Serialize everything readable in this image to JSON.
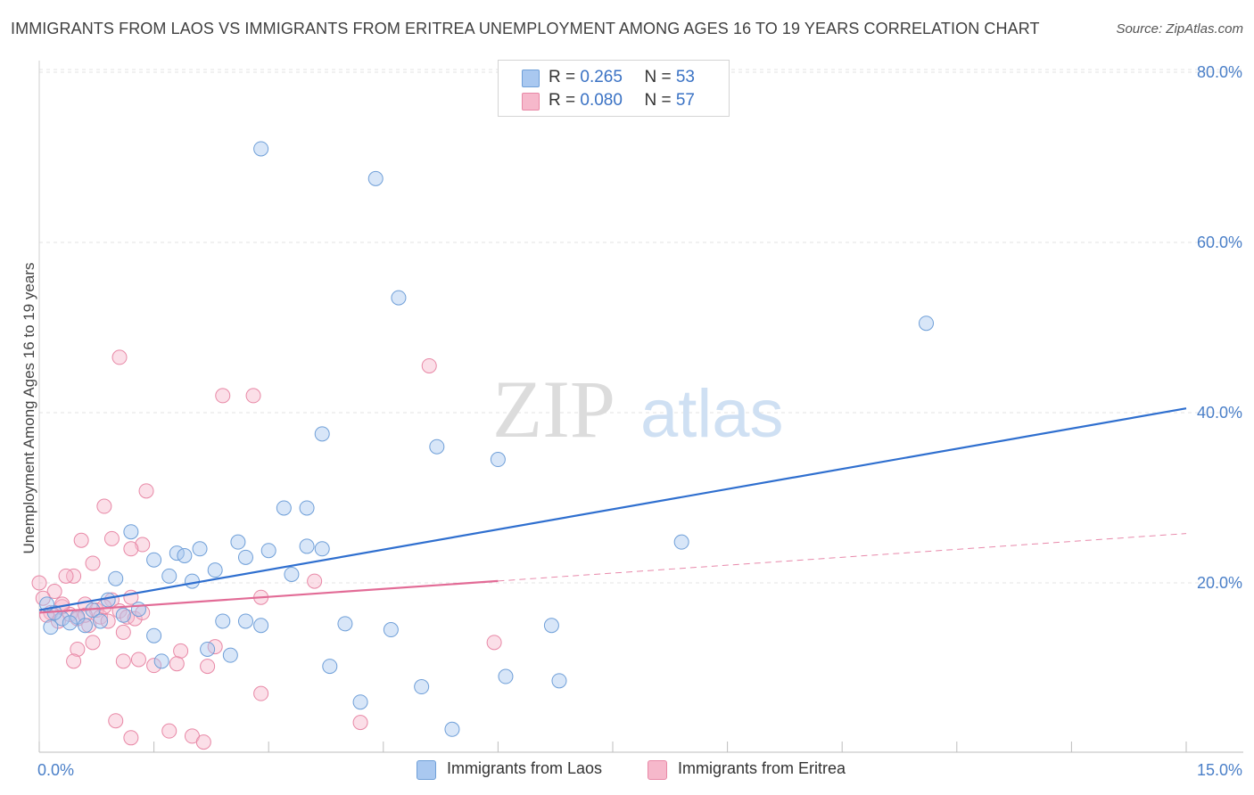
{
  "title": "IMMIGRANTS FROM LAOS VS IMMIGRANTS FROM ERITREA UNEMPLOYMENT AMONG AGES 16 TO 19 YEARS CORRELATION CHART",
  "source": "Source: ZipAtlas.com",
  "watermark": {
    "zip": "ZIP",
    "atlas": "atlas"
  },
  "legend_top": [
    {
      "r_label": "R = ",
      "r_value": "0.265",
      "n_label": "N = ",
      "n_value": "53",
      "color": "#a9c8f0"
    },
    {
      "r_label": "R = ",
      "r_value": "0.080",
      "n_label": "N = ",
      "n_value": "57",
      "color": "#f6b8cb"
    }
  ],
  "legend_bottom": [
    {
      "label": "Immigrants from Laos",
      "color": "#a9c8f0"
    },
    {
      "label": "Immigrants from Eritrea",
      "color": "#f6b8cb"
    }
  ],
  "chart_data": {
    "type": "scatter",
    "title": "IMMIGRANTS FROM LAOS VS IMMIGRANTS FROM ERITREA UNEMPLOYMENT AMONG AGES 16 TO 19 YEARS CORRELATION CHART",
    "xlabel": "",
    "ylabel": "Unemployment Among Ages 16 to 19 years",
    "xlim": [
      0,
      15
    ],
    "ylim": [
      0,
      80
    ],
    "x_tick_labels": [
      "0.0%",
      "15.0%"
    ],
    "y_ticks": [
      20,
      40,
      60,
      80
    ],
    "y_tick_labels": [
      "20.0%",
      "40.0%",
      "60.0%",
      "80.0%"
    ],
    "grid": true,
    "legend_placement": "top-center",
    "series": [
      {
        "name": "Immigrants from Laos",
        "color": "#a9c8f0",
        "stroke": "#6f9fd8",
        "trend": {
          "color": "#2f6fcf",
          "x": [
            0,
            15
          ],
          "y": [
            16.8,
            40.5
          ],
          "dashed_from": null
        },
        "points": [
          [
            2.9,
            71.0
          ],
          [
            4.4,
            67.5
          ],
          [
            4.7,
            53.5
          ],
          [
            11.6,
            50.5
          ],
          [
            3.7,
            37.5
          ],
          [
            5.2,
            36.0
          ],
          [
            6.0,
            34.5
          ],
          [
            3.2,
            28.8
          ],
          [
            3.5,
            28.8
          ],
          [
            1.2,
            26.0
          ],
          [
            2.6,
            24.8
          ],
          [
            3.5,
            24.3
          ],
          [
            3.7,
            24.0
          ],
          [
            3.0,
            23.8
          ],
          [
            2.1,
            24.0
          ],
          [
            1.8,
            23.5
          ],
          [
            2.7,
            23.0
          ],
          [
            1.5,
            22.7
          ],
          [
            8.4,
            24.8
          ],
          [
            2.3,
            21.5
          ],
          [
            3.3,
            21.0
          ],
          [
            1.7,
            20.8
          ],
          [
            2.0,
            20.2
          ],
          [
            1.0,
            20.5
          ],
          [
            0.9,
            18.0
          ],
          [
            1.3,
            16.9
          ],
          [
            0.7,
            16.8
          ],
          [
            0.5,
            16.0
          ],
          [
            0.3,
            15.8
          ],
          [
            0.4,
            15.3
          ],
          [
            0.6,
            15.0
          ],
          [
            0.8,
            15.5
          ],
          [
            1.1,
            16.2
          ],
          [
            0.2,
            16.5
          ],
          [
            0.15,
            14.8
          ],
          [
            2.4,
            15.5
          ],
          [
            2.7,
            15.5
          ],
          [
            2.9,
            15.0
          ],
          [
            4.0,
            15.2
          ],
          [
            4.6,
            14.5
          ],
          [
            6.7,
            15.0
          ],
          [
            1.5,
            13.8
          ],
          [
            2.2,
            12.2
          ],
          [
            2.5,
            11.5
          ],
          [
            1.6,
            10.8
          ],
          [
            3.8,
            10.2
          ],
          [
            5.0,
            7.8
          ],
          [
            6.1,
            9.0
          ],
          [
            6.8,
            8.5
          ],
          [
            4.2,
            6.0
          ],
          [
            5.4,
            2.8
          ],
          [
            0.1,
            17.5
          ],
          [
            1.9,
            23.2
          ]
        ]
      },
      {
        "name": "Immigrants from Eritrea",
        "color": "#f6b8cb",
        "stroke": "#e888a6",
        "trend": {
          "color": "#e26b96",
          "x": [
            0,
            15
          ],
          "y": [
            16.5,
            25.8
          ],
          "dashed_from": 6.0
        },
        "points": [
          [
            1.05,
            46.5
          ],
          [
            5.1,
            45.5
          ],
          [
            2.4,
            42.0
          ],
          [
            2.8,
            42.0
          ],
          [
            1.4,
            30.8
          ],
          [
            0.85,
            29.0
          ],
          [
            0.95,
            25.2
          ],
          [
            0.55,
            25.0
          ],
          [
            1.35,
            24.5
          ],
          [
            1.2,
            24.0
          ],
          [
            0.7,
            22.3
          ],
          [
            0.45,
            20.8
          ],
          [
            0.35,
            20.8
          ],
          [
            3.6,
            20.2
          ],
          [
            0.2,
            19.0
          ],
          [
            0.0,
            20.0
          ],
          [
            2.9,
            18.3
          ],
          [
            1.2,
            18.3
          ],
          [
            0.95,
            18.0
          ],
          [
            0.6,
            17.5
          ],
          [
            0.3,
            17.2
          ],
          [
            0.15,
            16.5
          ],
          [
            0.4,
            16.3
          ],
          [
            0.75,
            16.8
          ],
          [
            1.05,
            16.7
          ],
          [
            0.8,
            16.0
          ],
          [
            0.5,
            15.8
          ],
          [
            0.25,
            15.5
          ],
          [
            0.1,
            16.2
          ],
          [
            0.9,
            15.5
          ],
          [
            1.15,
            16.0
          ],
          [
            1.25,
            15.8
          ],
          [
            0.65,
            15.0
          ],
          [
            1.1,
            14.2
          ],
          [
            0.7,
            13.0
          ],
          [
            0.5,
            12.2
          ],
          [
            1.85,
            12.0
          ],
          [
            2.3,
            12.5
          ],
          [
            5.95,
            13.0
          ],
          [
            0.45,
            10.8
          ],
          [
            1.1,
            10.8
          ],
          [
            1.3,
            11.0
          ],
          [
            1.5,
            10.3
          ],
          [
            1.8,
            10.5
          ],
          [
            2.2,
            10.2
          ],
          [
            2.9,
            7.0
          ],
          [
            1.0,
            3.8
          ],
          [
            4.2,
            3.6
          ],
          [
            1.2,
            1.8
          ],
          [
            1.7,
            2.6
          ],
          [
            2.0,
            2.0
          ],
          [
            2.15,
            1.3
          ],
          [
            0.05,
            18.2
          ],
          [
            0.85,
            17.2
          ],
          [
            1.35,
            16.5
          ],
          [
            0.6,
            16.2
          ],
          [
            0.3,
            17.5
          ]
        ]
      }
    ]
  }
}
